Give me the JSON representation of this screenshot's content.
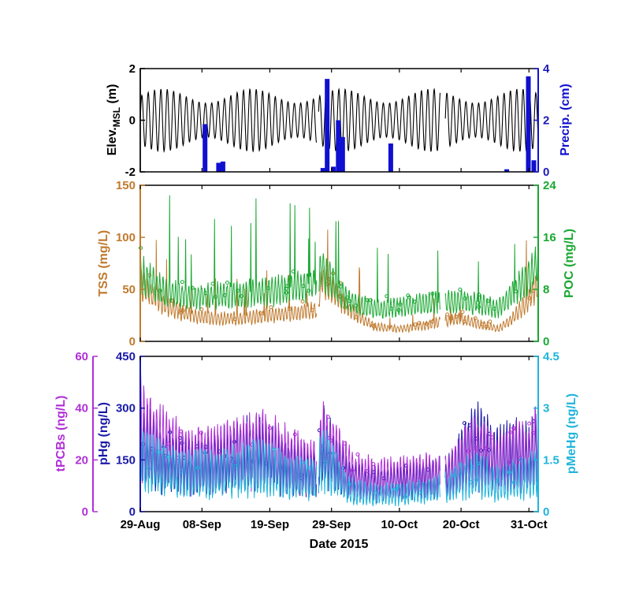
{
  "chart_data": [
    {
      "type": "line",
      "panel": "elevation-precipitation",
      "left_axis": {
        "label_main": "Elev.",
        "label_sub": "MSL",
        "label_unit": " (m)",
        "range": [
          -2,
          2
        ],
        "ticks": [
          "-2",
          "0",
          "2"
        ],
        "tick_values": [
          -2,
          0,
          2
        ],
        "color": "#000000"
      },
      "right_axis": {
        "label": "Precip. (cm)",
        "range": [
          0,
          4
        ],
        "ticks": [
          "0",
          "2",
          "4"
        ],
        "tick_values": [
          0,
          2,
          4
        ],
        "color": "#1a1ab8"
      },
      "series": [
        {
          "kind": "tidal-line",
          "axis": "left",
          "color": "#000000",
          "amplitude": 1.1,
          "mean": 0.0,
          "period_days": 1.03
        },
        {
          "kind": "bars",
          "axis": "right",
          "color": "#1010d0",
          "x": [
            10.5,
            12.7,
            13.4,
            29.6,
            30.3,
            31.3,
            32.1,
            32.8,
            40.6,
            59.4,
            62.9,
            63.8
          ],
          "values": [
            1.85,
            0.35,
            0.4,
            0.15,
            3.6,
            0.2,
            2.0,
            1.35,
            1.1,
            0.1,
            3.7,
            0.45
          ]
        }
      ]
    },
    {
      "type": "line",
      "panel": "tss-poc",
      "left_axis": {
        "label": "TSS (mg/L)",
        "range": [
          0,
          150
        ],
        "ticks": [
          "0",
          "50",
          "100",
          "150"
        ],
        "tick_values": [
          0,
          50,
          100,
          150
        ],
        "color": "#c07a2e"
      },
      "right_axis": {
        "label": "POC (mg/L)",
        "range": [
          0,
          24
        ],
        "ticks": [
          "0",
          "8",
          "16",
          "24"
        ],
        "tick_values": [
          0,
          8,
          16,
          24
        ],
        "color": "#1aa832"
      },
      "series": [
        {
          "kind": "sensor-line",
          "axis": "left",
          "color": "#c07a2e",
          "profile_x": [
            0,
            4,
            8,
            12,
            16,
            20,
            24,
            28.6,
            29.5,
            34,
            38,
            42,
            46,
            50,
            52,
            54,
            56,
            58,
            60,
            63,
            64.5
          ],
          "profile_y": [
            55,
            35,
            25,
            22,
            22,
            24,
            27,
            30,
            60,
            30,
            14,
            12,
            15,
            20,
            22,
            18,
            15,
            12,
            20,
            40,
            55
          ]
        },
        {
          "kind": "sensor-line",
          "axis": "right",
          "color": "#1aa832",
          "profile_x": [
            0,
            4,
            8,
            12,
            16,
            20,
            24,
            28.6,
            29.5,
            34,
            38,
            42,
            46,
            50,
            52,
            54,
            56,
            58,
            60,
            63,
            64.5
          ],
          "profile_y": [
            10.5,
            7.5,
            6.8,
            7.0,
            7.2,
            7.5,
            8.0,
            8.8,
            11.0,
            6.0,
            5.0,
            5.2,
            5.8,
            6.0,
            6.2,
            5.8,
            5.5,
            5.0,
            7.0,
            10.0,
            12.0
          ]
        }
      ]
    },
    {
      "type": "line",
      "panel": "mercury-pcbs",
      "outer_left_axis": {
        "label": "tPCBs (ng/L)",
        "range": [
          0,
          60
        ],
        "ticks": [
          "0",
          "20",
          "40",
          "60"
        ],
        "tick_values": [
          0,
          20,
          40,
          60
        ],
        "color": "#b02fd8"
      },
      "left_axis": {
        "label": "pHg (ng/L)",
        "range": [
          0,
          450
        ],
        "ticks": [
          "0",
          "150",
          "300",
          "450"
        ],
        "tick_values": [
          0,
          150,
          300,
          450
        ],
        "color": "#1a1aa8"
      },
      "right_axis": {
        "label": "pMeHg (ng/L)",
        "range": [
          0,
          4.5
        ],
        "ticks": [
          "0",
          "1.5",
          "3",
          "4.5"
        ],
        "tick_values": [
          0,
          1.5,
          3,
          4.5
        ],
        "color": "#1fb4dc"
      },
      "series": [
        {
          "kind": "sensor-line",
          "axis": "left",
          "color": "#1a1aa8",
          "profile_x": [
            0,
            4,
            8,
            12,
            16,
            20,
            24,
            28.6,
            29.5,
            34,
            38,
            42,
            46,
            50,
            52,
            54,
            56,
            58,
            60,
            63,
            64.5
          ],
          "profile_y": [
            200,
            150,
            130,
            140,
            160,
            175,
            130,
            110,
            190,
            100,
            80,
            85,
            95,
            100,
            150,
            200,
            180,
            150,
            170,
            160,
            190
          ]
        },
        {
          "kind": "sensor-line",
          "axis": "outer",
          "color": "#b02fd8",
          "profile_x": [
            0,
            4,
            8,
            12,
            16,
            20,
            24,
            28.6,
            29.5,
            34,
            38,
            42,
            46,
            50,
            52,
            54,
            56,
            58,
            60,
            63,
            64.5
          ],
          "profile_y": [
            32,
            24,
            20,
            21,
            23,
            25,
            20,
            17,
            28,
            15,
            13,
            13,
            14,
            14,
            19,
            24,
            22,
            18,
            21,
            22,
            27
          ]
        },
        {
          "kind": "sensor-line",
          "axis": "right",
          "color": "#1fb4dc",
          "profile_x": [
            0,
            4,
            8,
            12,
            16,
            20,
            24,
            28.6,
            29.5,
            34,
            38,
            42,
            46,
            50,
            52,
            54,
            56,
            58,
            60,
            63,
            64.5
          ],
          "profile_y": [
            1.5,
            1.2,
            1.1,
            1.1,
            1.2,
            1.3,
            1.0,
            0.9,
            1.6,
            0.6,
            0.5,
            0.5,
            0.6,
            0.7,
            0.9,
            1.1,
            1.0,
            0.8,
            0.9,
            1.0,
            1.3
          ]
        }
      ]
    }
  ],
  "x_axis": {
    "label": "Date 2015",
    "range": [
      0,
      64.5
    ],
    "ticks": [
      "29-Aug",
      "08-Sep",
      "19-Sep",
      "29-Sep",
      "10-Oct",
      "20-Oct",
      "31-Oct"
    ],
    "tick_values": [
      0,
      10,
      21,
      31,
      42,
      52,
      63
    ]
  },
  "data_gaps": [
    [
      28.6,
      28.9
    ],
    [
      48.6,
      49.4
    ]
  ],
  "colors": {
    "elev": "#000000",
    "precip": "#1010d0",
    "tss": "#c07a2e",
    "poc": "#1aa832",
    "phg": "#1a1aa8",
    "tpcbs": "#b02fd8",
    "pmehg": "#1fb4dc"
  }
}
